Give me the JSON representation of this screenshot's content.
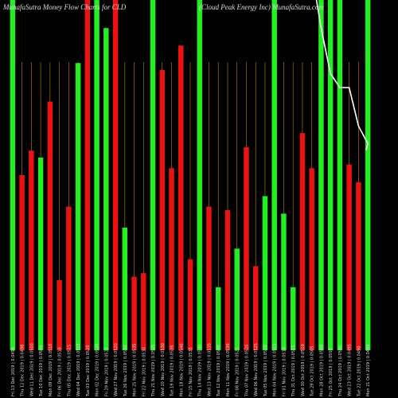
{
  "header": {
    "left_title": "MunafaSutra  Money Flow  Charts for CLD",
    "right_title": "(Cloud Peak Energy Inc) MunafaSutra.com"
  },
  "colors": {
    "background": "#000000",
    "up": "#22ee22",
    "down": "#ee1111",
    "grid": "#b8860b",
    "line": "#ffffff",
    "text": "#dddddd"
  },
  "chart_data": {
    "type": "bar",
    "title": "MunafaSutra  Money Flow  Charts for CLD",
    "subtitle": "(Cloud Peak Energy Inc) MunafaSutra.com",
    "ylim": [
      0,
      100
    ],
    "grid": true,
    "categories": [
      "Fri 13 Dec 2019 | 0.0496",
      "Thu 12 Dec 2019 | 0.0498",
      "Wed 11 Dec 2019 | 0.0500",
      "Tue 10 Dec 2019 | 0.0505",
      "Mon 09 Dec 2019 | 0.0510",
      "Fri 06 Dec 2019 | 0.0510",
      "Thu 05 Dec 2019 | 0.0515",
      "Wed 04 Dec 2019 | 0.0515",
      "Tue 03 Dec 2019 | 0.0520",
      "Mon 02 Dec 2019 | 0.0520",
      "Fri 29 Nov 2019 | 0.0525",
      "Wed 27 Nov 2019 | 0.0520",
      "Tue 26 Nov 2019 | 0.0530",
      "Mon 25 Nov 2019 | 0.0535",
      "Fri 22 Nov 2019 | 0.0530",
      "Thu 21 Nov 2019 | 0.0525",
      "Wed 20 Nov 2019 | 0.0530",
      "Tue 19 Nov 2019 | 0.0535",
      "Mon 18 Nov 2019 | 0.0540",
      "Fri 15 Nov 2019 | 0.0535",
      "Thu 14 Nov 2019 | 0.0530",
      "Wed 13 Nov 2019 | 0.0535",
      "Tue 12 Nov 2019 | 0.0540",
      "Mon 11 Nov 2019 | 0.0530",
      "Fri 08 Nov 2019 | 0.0525",
      "Thu 07 Nov 2019 | 0.0520",
      "Wed 06 Nov 2019 | 0.0525",
      "Tue 05 Nov 2019 | 0.0520",
      "Mon 04 Nov 2019 | 0.0515",
      "Fri 01 Nov 2019 | 0.0510",
      "Thu 31 Oct 2019 | 0.0515",
      "Wed 30 Oct 2019 | 0.0510",
      "Tue 29 Oct 2019 | 0.0505",
      "Mon 28 Oct 2019 | 0.0500",
      "Fri 25 Oct 2019 | 0.0505",
      "Thu 24 Oct 2019 | 0.0500",
      "Wed 23 Oct 2019 | 0.0495",
      "Tue 22 Oct 2019 | 0.0490",
      "Mon 21 Oct 2019 | 0.0495"
    ],
    "series": [
      {
        "values": [
          100,
          50,
          57,
          55,
          71,
          20,
          41,
          82,
          100,
          100,
          92,
          100,
          35,
          21,
          22,
          100,
          80,
          52,
          87,
          26,
          100,
          41,
          18,
          40,
          29,
          58,
          24,
          44,
          100,
          39,
          18,
          62,
          52,
          100,
          100,
          100,
          53,
          48,
          100
        ],
        "colors": [
          "up",
          "down",
          "down",
          "up",
          "down",
          "down",
          "down",
          "up",
          "down",
          "up",
          "up",
          "down",
          "up",
          "down",
          "down",
          "up",
          "down",
          "down",
          "down",
          "down",
          "up",
          "down",
          "up",
          "down",
          "up",
          "down",
          "down",
          "up",
          "up",
          "up",
          "up",
          "down",
          "down",
          "up",
          "up",
          "up",
          "down",
          "down",
          "up"
        ]
      }
    ],
    "line": {
      "values": [
        null,
        null,
        null,
        null,
        null,
        null,
        null,
        null,
        null,
        null,
        null,
        null,
        null,
        null,
        null,
        null,
        null,
        null,
        null,
        null,
        null,
        null,
        null,
        null,
        null,
        null,
        null,
        null,
        null,
        null,
        null,
        null,
        null,
        92,
        79,
        75,
        75,
        64,
        59
      ]
    }
  }
}
